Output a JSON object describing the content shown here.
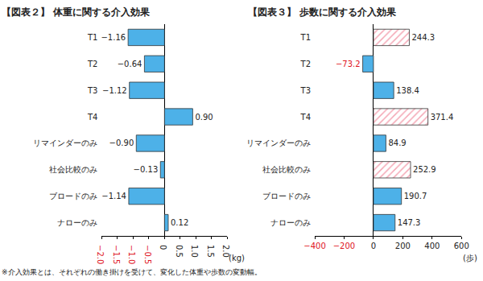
{
  "chart_data": [
    {
      "type": "bar",
      "orientation": "horizontal",
      "data_labels": true,
      "title": "【図表２】 体重に関する介入効果",
      "xlabel": "(kg)",
      "categories": [
        "T1",
        "T2",
        "T3",
        "T4",
        "リマインダーのみ",
        "社会比較のみ",
        "ブロードのみ",
        "ナローのみ"
      ],
      "values": [
        -1.16,
        -0.64,
        -1.12,
        0.9,
        -0.9,
        -0.13,
        -1.14,
        0.12
      ],
      "value_labels": [
        "−1.16",
        "−0.64",
        "−1.12",
        "0.90",
        "−0.90",
        "−0.13",
        "−1.14",
        "0.12"
      ],
      "color": "#4db1e8",
      "xlim": [
        -2,
        2
      ],
      "xticks": [
        {
          "value": -2,
          "label": "−2.0"
        },
        {
          "value": -1.5,
          "label": "−1.5"
        },
        {
          "value": -1,
          "label": "−1.0"
        },
        {
          "value": -0.5,
          "label": "−0.5"
        },
        0,
        0.5,
        {
          "value": 1,
          "label": "1.0"
        },
        1.5,
        {
          "value": 2,
          "label": "2.0"
        }
      ],
      "grid": false
    },
    {
      "type": "bar",
      "orientation": "horizontal",
      "data_labels": true,
      "title": "【図表３】 歩数に関する介入効果",
      "xlabel": "(歩)",
      "categories": [
        "T1",
        "T2",
        "T3",
        "T4",
        "リマインダーのみ",
        "社会比較のみ",
        "ブロードのみ",
        "ナローのみ"
      ],
      "values": [
        244.3,
        -73.2,
        138.4,
        371.4,
        84.9,
        252.9,
        190.7,
        147.3
      ],
      "value_labels": [
        "244.3",
        "−73.2",
        "138.4",
        "371.4",
        "84.9",
        "252.9",
        "190.7",
        "147.3"
      ],
      "color": "#4db1e8",
      "colors": [
        "#f4a6b4",
        "#4db1e8",
        "#4db1e8",
        "#f4a6b4",
        "#4db1e8",
        "#f4a6b4",
        "#4db1e8",
        "#4db1e8"
      ],
      "marker": "hatched",
      "xlim": [
        -400,
        600
      ],
      "xticks": [
        {
          "value": -400,
          "label": "−400"
        },
        {
          "value": -200,
          "label": "−200"
        },
        0,
        200,
        400,
        600
      ],
      "grid": false
    }
  ],
  "footnote": "※介入効果とは、それぞれの働き掛けを受けて、変化した体重や歩数の変動幅。"
}
